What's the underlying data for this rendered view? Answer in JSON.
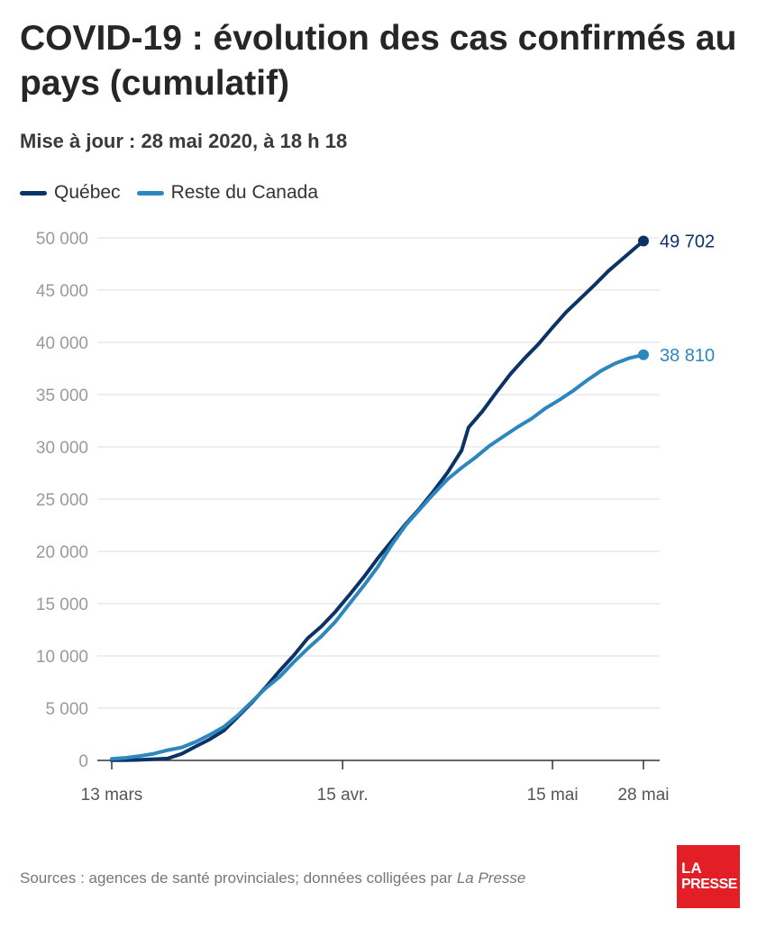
{
  "header": {
    "title": "COVID-19 : évolution des cas confirmés au pays (cumulatif)",
    "subtitle": "Mise à jour : 28 mai 2020, à 18 h 18"
  },
  "legend": {
    "items": [
      {
        "label": "Québec",
        "color": "#0b3366"
      },
      {
        "label": "Reste du Canada",
        "color": "#2d87bf"
      }
    ]
  },
  "chart_data": {
    "type": "line",
    "title": "COVID-19 : évolution des cas confirmés au pays (cumulatif)",
    "subtitle": "Mise à jour : 28 mai 2020, à 18 h 18",
    "xlabel": "",
    "ylabel": "",
    "x_start": "2020-03-13",
    "x_end": "2020-05-28",
    "xticks": [
      {
        "date": "2020-03-13",
        "label": "13 mars"
      },
      {
        "date": "2020-04-15",
        "label": "15 avr."
      },
      {
        "date": "2020-05-15",
        "label": "15 mai"
      },
      {
        "date": "2020-05-28",
        "label": "28 mai"
      }
    ],
    "ylim": [
      0,
      50000
    ],
    "yticks": [
      {
        "value": 0,
        "label": "0"
      },
      {
        "value": 5000,
        "label": "5 000"
      },
      {
        "value": 10000,
        "label": "10 000"
      },
      {
        "value": 15000,
        "label": "15 000"
      },
      {
        "value": 20000,
        "label": "20 000"
      },
      {
        "value": 25000,
        "label": "25 000"
      },
      {
        "value": 30000,
        "label": "30 000"
      },
      {
        "value": 35000,
        "label": "35 000"
      },
      {
        "value": 40000,
        "label": "40 000"
      },
      {
        "value": 45000,
        "label": "45 000"
      },
      {
        "value": 50000,
        "label": "50 000"
      }
    ],
    "grid": "horizontal",
    "legend_position": "top-left",
    "series": [
      {
        "name": "Québec",
        "color": "#0b3366",
        "end_label": "49 702",
        "points": [
          {
            "date": "2020-03-13",
            "value": 17
          },
          {
            "date": "2020-03-15",
            "value": 24
          },
          {
            "date": "2020-03-17",
            "value": 50
          },
          {
            "date": "2020-03-19",
            "value": 121
          },
          {
            "date": "2020-03-21",
            "value": 181
          },
          {
            "date": "2020-03-23",
            "value": 628
          },
          {
            "date": "2020-03-25",
            "value": 1339
          },
          {
            "date": "2020-03-27",
            "value": 2021
          },
          {
            "date": "2020-03-29",
            "value": 2840
          },
          {
            "date": "2020-03-31",
            "value": 4162
          },
          {
            "date": "2020-04-02",
            "value": 5518
          },
          {
            "date": "2020-04-04",
            "value": 6997
          },
          {
            "date": "2020-04-06",
            "value": 8580
          },
          {
            "date": "2020-04-08",
            "value": 10031
          },
          {
            "date": "2020-04-10",
            "value": 11677
          },
          {
            "date": "2020-04-12",
            "value": 12846
          },
          {
            "date": "2020-04-14",
            "value": 14248
          },
          {
            "date": "2020-04-16",
            "value": 15857
          },
          {
            "date": "2020-04-18",
            "value": 17521
          },
          {
            "date": "2020-04-20",
            "value": 19319
          },
          {
            "date": "2020-04-22",
            "value": 20965
          },
          {
            "date": "2020-04-24",
            "value": 22616
          },
          {
            "date": "2020-04-26",
            "value": 24107
          },
          {
            "date": "2020-04-28",
            "value": 25757
          },
          {
            "date": "2020-04-30",
            "value": 27538
          },
          {
            "date": "2020-05-02",
            "value": 29656
          },
          {
            "date": "2020-05-03",
            "value": 31865
          },
          {
            "date": "2020-05-05",
            "value": 33417
          },
          {
            "date": "2020-05-07",
            "value": 35238
          },
          {
            "date": "2020-05-09",
            "value": 36986
          },
          {
            "date": "2020-05-11",
            "value": 38469
          },
          {
            "date": "2020-05-13",
            "value": 39845
          },
          {
            "date": "2020-05-15",
            "value": 41420
          },
          {
            "date": "2020-05-17",
            "value": 42920
          },
          {
            "date": "2020-05-19",
            "value": 44197
          },
          {
            "date": "2020-05-21",
            "value": 45495
          },
          {
            "date": "2020-05-23",
            "value": 46838
          },
          {
            "date": "2020-05-25",
            "value": 47984
          },
          {
            "date": "2020-05-27",
            "value": 49139
          },
          {
            "date": "2020-05-28",
            "value": 49702
          }
        ]
      },
      {
        "name": "Reste du Canada",
        "color": "#2d87bf",
        "end_label": "38 810",
        "points": [
          {
            "date": "2020-03-13",
            "value": 150
          },
          {
            "date": "2020-03-15",
            "value": 250
          },
          {
            "date": "2020-03-17",
            "value": 420
          },
          {
            "date": "2020-03-19",
            "value": 640
          },
          {
            "date": "2020-03-21",
            "value": 980
          },
          {
            "date": "2020-03-23",
            "value": 1240
          },
          {
            "date": "2020-03-25",
            "value": 1780
          },
          {
            "date": "2020-03-27",
            "value": 2450
          },
          {
            "date": "2020-03-29",
            "value": 3200
          },
          {
            "date": "2020-03-31",
            "value": 4300
          },
          {
            "date": "2020-04-02",
            "value": 5600
          },
          {
            "date": "2020-04-04",
            "value": 6900
          },
          {
            "date": "2020-04-06",
            "value": 8000
          },
          {
            "date": "2020-04-08",
            "value": 9400
          },
          {
            "date": "2020-04-10",
            "value": 10700
          },
          {
            "date": "2020-04-12",
            "value": 11900
          },
          {
            "date": "2020-04-14",
            "value": 13300
          },
          {
            "date": "2020-04-16",
            "value": 15000
          },
          {
            "date": "2020-04-18",
            "value": 16700
          },
          {
            "date": "2020-04-20",
            "value": 18500
          },
          {
            "date": "2020-04-22",
            "value": 20600
          },
          {
            "date": "2020-04-24",
            "value": 22500
          },
          {
            "date": "2020-04-26",
            "value": 24000
          },
          {
            "date": "2020-04-28",
            "value": 25500
          },
          {
            "date": "2020-04-30",
            "value": 26900
          },
          {
            "date": "2020-05-02",
            "value": 28000
          },
          {
            "date": "2020-05-04",
            "value": 29000
          },
          {
            "date": "2020-05-06",
            "value": 30100
          },
          {
            "date": "2020-05-08",
            "value": 31000
          },
          {
            "date": "2020-05-10",
            "value": 31900
          },
          {
            "date": "2020-05-12",
            "value": 32700
          },
          {
            "date": "2020-05-14",
            "value": 33700
          },
          {
            "date": "2020-05-16",
            "value": 34500
          },
          {
            "date": "2020-05-18",
            "value": 35400
          },
          {
            "date": "2020-05-20",
            "value": 36400
          },
          {
            "date": "2020-05-22",
            "value": 37300
          },
          {
            "date": "2020-05-24",
            "value": 38000
          },
          {
            "date": "2020-05-26",
            "value": 38500
          },
          {
            "date": "2020-05-28",
            "value": 38810
          }
        ]
      }
    ]
  },
  "footer": {
    "source_prefix": "Sources : agences de santé provinciales; données colligées par ",
    "source_italic": "La Presse",
    "logo_line1": "LA",
    "logo_line2": "PRESSE"
  }
}
